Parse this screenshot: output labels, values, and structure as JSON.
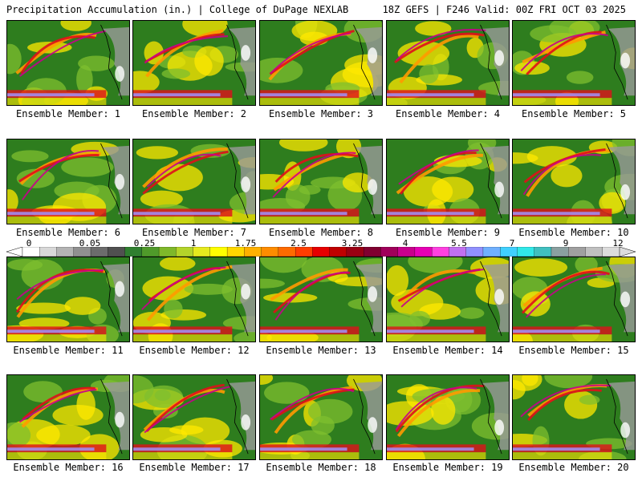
{
  "header": {
    "title": "Precipitation Accumulation (in.) | College of DuPage NEXLAB",
    "run_info": "18Z GEFS | F246 Valid: 00Z FRI OCT 03 2025"
  },
  "panels": [
    {
      "label": "Ensemble Member: 1"
    },
    {
      "label": "Ensemble Member: 2"
    },
    {
      "label": "Ensemble Member: 3"
    },
    {
      "label": "Ensemble Member: 4"
    },
    {
      "label": "Ensemble Member: 5"
    },
    {
      "label": "Ensemble Member: 6"
    },
    {
      "label": "Ensemble Member: 7"
    },
    {
      "label": "Ensemble Member: 8"
    },
    {
      "label": "Ensemble Member: 9"
    },
    {
      "label": "Ensemble Member: 10"
    },
    {
      "label": "Ensemble Member: 11"
    },
    {
      "label": "Ensemble Member: 12"
    },
    {
      "label": "Ensemble Member: 13"
    },
    {
      "label": "Ensemble Member: 14"
    },
    {
      "label": "Ensemble Member: 15"
    },
    {
      "label": "Ensemble Member: 16"
    },
    {
      "label": "Ensemble Member: 17"
    },
    {
      "label": "Ensemble Member: 18"
    },
    {
      "label": "Ensemble Member: 19"
    },
    {
      "label": "Ensemble Member: 20"
    }
  ],
  "colorbar": {
    "tick_labels": [
      "0",
      "0.05",
      "0.25",
      "1",
      "1.75",
      "2.5",
      "3.25",
      "4",
      "5.5",
      "7",
      "9",
      "12"
    ],
    "colors": [
      "#ffffff",
      "#d8d8d8",
      "#b4b4b4",
      "#909090",
      "#6c6c6c",
      "#505050",
      "#2f7f2f",
      "#4f9a2a",
      "#7fb82a",
      "#b4d42a",
      "#e6ea1e",
      "#ffff00",
      "#ffd700",
      "#ffb000",
      "#ff8c00",
      "#ff6a00",
      "#ff3d00",
      "#e60000",
      "#c00000",
      "#9a0012",
      "#800030",
      "#a0005a",
      "#c8008c",
      "#e600b4",
      "#ff40e0",
      "#c070f0",
      "#9090ff",
      "#70b0ff",
      "#40d0ff",
      "#30e8e8",
      "#40c0c0",
      "#8aa0a0",
      "#a0a0a0",
      "#c0c0c0",
      "#dcdcdc"
    ]
  },
  "map_colors": {
    "ocean_low": "#2e7d1e",
    "light_green": "#7fbf2f",
    "yellow": "#ffe800",
    "orange": "#ff9a00",
    "red": "#e0101a",
    "magenta": "#c8008c",
    "lavender": "#a28cf0",
    "gray": "#9a9a9a",
    "white": "#ffffff"
  }
}
